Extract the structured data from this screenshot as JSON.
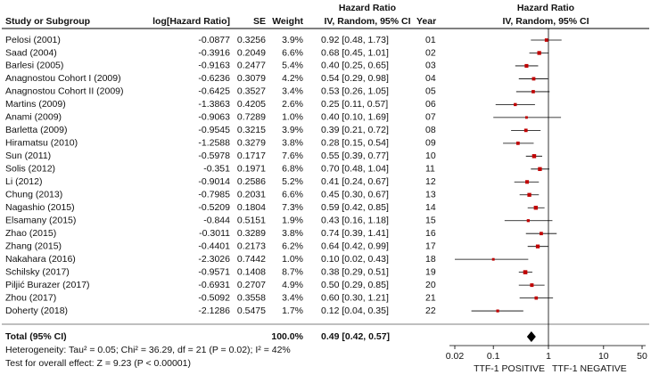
{
  "chart_data": {
    "type": "forest",
    "columns": [
      "Study or Subgroup",
      "log[Hazard Ratio]",
      "SE",
      "Weight"
    ],
    "hr_header": [
      "Hazard Ratio",
      "IV, Random, 95% CI"
    ],
    "year_header": "Year",
    "plot_header": [
      "Hazard Ratio",
      "IV, Random, 95% CI"
    ],
    "studies": [
      "Pelosi (2001)",
      "Saad (2004)",
      "Barlesi (2005)",
      "Anagnostou Cohort I (2009)",
      "Anagnostou Cohort II (2009)",
      "Martins (2009)",
      "Anami (2009)",
      "Barletta (2009)",
      "Hiramatsu (2010)",
      "Sun (2011)",
      "Solis (2012)",
      "Li (2012)",
      "Chung (2013)",
      "Nagashio (2015)",
      "Elsamany (2015)",
      "Zhao (2015)",
      "Zhang (2015)",
      "Nakahara (2016)",
      "Schilsky (2017)",
      "Piljić Burazer (2017)",
      "Zhou (2017)",
      "Doherty (2018)"
    ],
    "log_hr": [
      -0.0877,
      -0.3916,
      -0.9163,
      -0.6236,
      -0.6425,
      -1.3863,
      -0.9063,
      -0.9545,
      -1.2588,
      -0.5978,
      -0.351,
      -0.9014,
      -0.7985,
      -0.5209,
      -0.844,
      -0.3011,
      -0.4401,
      -2.3026,
      -0.9571,
      -0.6931,
      -0.5092,
      -2.1286
    ],
    "se": [
      0.3256,
      0.2049,
      0.2477,
      0.3079,
      0.3527,
      0.4205,
      0.7289,
      0.3215,
      0.3279,
      0.1717,
      0.1971,
      0.2586,
      0.2031,
      0.1804,
      0.5151,
      0.3289,
      0.2173,
      0.7442,
      0.1408,
      0.2707,
      0.3558,
      0.5475
    ],
    "weight": {
      "values": [
        3.9,
        6.6,
        5.4,
        4.2,
        3.4,
        2.6,
        1.0,
        3.9,
        3.8,
        7.6,
        6.8,
        5.2,
        6.6,
        7.3,
        1.9,
        3.8,
        6.2,
        1.0,
        8.7,
        4.9,
        3.4,
        1.7
      ],
      "value_labels": [
        "3.9%",
        "6.6%",
        "5.4%",
        "4.2%",
        "3.4%",
        "2.6%",
        "1.0%",
        "3.9%",
        "3.8%",
        "7.6%",
        "6.8%",
        "5.2%",
        "6.6%",
        "7.3%",
        "1.9%",
        "3.8%",
        "6.2%",
        "1.0%",
        "8.7%",
        "4.9%",
        "3.4%",
        "1.7%"
      ]
    },
    "hr": {
      "values": [
        0.92,
        0.68,
        0.4,
        0.54,
        0.53,
        0.25,
        0.4,
        0.39,
        0.28,
        0.55,
        0.7,
        0.41,
        0.45,
        0.59,
        0.43,
        0.74,
        0.64,
        0.1,
        0.38,
        0.5,
        0.6,
        0.12
      ],
      "lower": [
        0.48,
        0.45,
        0.25,
        0.29,
        0.26,
        0.11,
        0.1,
        0.21,
        0.15,
        0.39,
        0.48,
        0.24,
        0.3,
        0.42,
        0.16,
        0.39,
        0.42,
        0.02,
        0.29,
        0.29,
        0.3,
        0.04
      ],
      "upper": [
        1.73,
        1.01,
        0.65,
        0.98,
        1.05,
        0.57,
        1.69,
        0.72,
        0.54,
        0.77,
        1.04,
        0.67,
        0.67,
        0.85,
        1.18,
        1.41,
        0.99,
        0.43,
        0.51,
        0.85,
        1.21,
        0.35
      ],
      "value_labels": [
        "0.92 [0.48, 1.73]",
        "0.68 [0.45, 1.01]",
        "0.40 [0.25, 0.65]",
        "0.54 [0.29, 0.98]",
        "0.53 [0.26, 1.05]",
        "0.25 [0.11, 0.57]",
        "0.40 [0.10, 1.69]",
        "0.39 [0.21, 0.72]",
        "0.28 [0.15, 0.54]",
        "0.55 [0.39, 0.77]",
        "0.70 [0.48, 1.04]",
        "0.41 [0.24, 0.67]",
        "0.45 [0.30, 0.67]",
        "0.59 [0.42, 0.85]",
        "0.43 [0.16, 1.18]",
        "0.74 [0.39, 1.41]",
        "0.64 [0.42, 0.99]",
        "0.10 [0.02, 0.43]",
        "0.38 [0.29, 0.51]",
        "0.50 [0.29, 0.85]",
        "0.60 [0.30, 1.21]",
        "0.12 [0.04, 0.35]"
      ]
    },
    "years": [
      "01",
      "02",
      "03",
      "04",
      "05",
      "06",
      "07",
      "08",
      "09",
      "10",
      "11",
      "12",
      "13",
      "14",
      "15",
      "16",
      "17",
      "18",
      "19",
      "20",
      "21",
      "22"
    ],
    "total": {
      "name": "Total (95% CI)",
      "weight": 100,
      "weight_label": "100.0%",
      "hr": 0.49,
      "lower": 0.42,
      "upper": 0.57,
      "label": "0.49 [0.42, 0.57]"
    },
    "heterogeneity": "Heterogeneity: Tau² = 0.05; Chi² = 36.29, df = 21 (P = 0.02); I² = 42%",
    "overall_effect": "Test for overall effect: Z = 9.23 (P < 0.00001)",
    "xlim": [
      0.02,
      50
    ],
    "xticks": [
      0.02,
      0.1,
      1,
      10,
      50
    ],
    "log_scale": true,
    "reference": 1,
    "x_labels": [
      "TTF-1 POSITIVE",
      "TTF-1 NEGATIVE"
    ],
    "marker_color": "#c00000",
    "line_color": "#000000"
  }
}
